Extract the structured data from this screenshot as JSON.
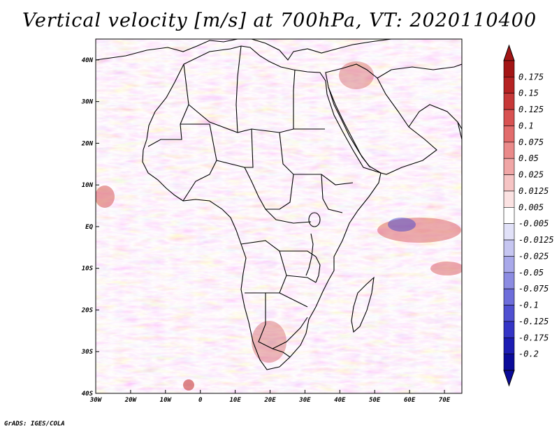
{
  "title": "Vertical velocity [m/s] at 700hPa, VT: 2020110400",
  "credit": "GrADS: IGES/COLA",
  "map": {
    "region": "Africa and surrounding oceans",
    "lon_labels": [
      "30W",
      "20W",
      "10W",
      "0",
      "10E",
      "20E",
      "30E",
      "40E",
      "50E",
      "60E",
      "70E"
    ],
    "lat_labels": [
      "40N",
      "30N",
      "20N",
      "10N",
      "EQ",
      "10S",
      "20S",
      "30S",
      "40S"
    ],
    "lon_range": [
      -30,
      75
    ],
    "lat_range": [
      -40,
      45
    ]
  },
  "colorbar": {
    "labels": [
      "0.175",
      "0.15",
      "0.125",
      "0.1",
      "0.075",
      "0.05",
      "0.025",
      "0.0125",
      "0.005",
      "-0.005",
      "-0.0125",
      "-0.025",
      "-0.05",
      "-0.075",
      "-0.1",
      "-0.125",
      "-0.175",
      "-0.2"
    ],
    "colors": [
      "#a31515",
      "#b52222",
      "#c73838",
      "#d85252",
      "#e26c6c",
      "#ea8a8a",
      "#f0a6a6",
      "#f6c4c4",
      "#fbe2e2",
      "#ffffff",
      "#e1e1f8",
      "#c6c6f1",
      "#a9a9ea",
      "#8c8ce2",
      "#6e6edb",
      "#5050d1",
      "#3535c6",
      "#1d1db3",
      "#0b0b9a"
    ]
  },
  "colors": {
    "positive": "#d44a4a",
    "negative": "#5a5ad8",
    "coast": "#000000"
  }
}
